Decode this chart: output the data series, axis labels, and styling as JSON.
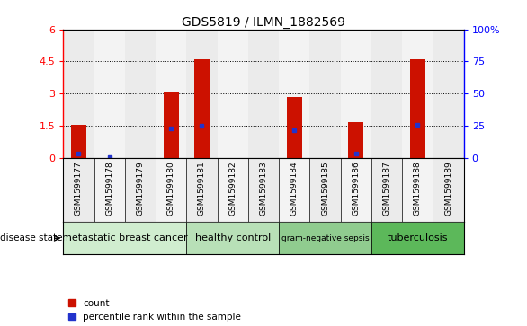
{
  "title": "GDS5819 / ILMN_1882569",
  "samples": [
    "GSM1599177",
    "GSM1599178",
    "GSM1599179",
    "GSM1599180",
    "GSM1599181",
    "GSM1599182",
    "GSM1599183",
    "GSM1599184",
    "GSM1599185",
    "GSM1599186",
    "GSM1599187",
    "GSM1599188",
    "GSM1599189"
  ],
  "count_values": [
    1.55,
    0.0,
    0.0,
    3.08,
    4.6,
    0.0,
    0.0,
    2.85,
    0.0,
    1.65,
    0.0,
    4.6,
    0.0
  ],
  "percentile_values_scaled": [
    0.22,
    0.05,
    0.0,
    1.38,
    1.5,
    0.0,
    0.0,
    1.28,
    0.0,
    0.22,
    0.0,
    1.55,
    0.0
  ],
  "disease_groups": [
    {
      "label": "metastatic breast cancer",
      "start": 0,
      "end": 4,
      "color": "#d0edcf"
    },
    {
      "label": "healthy control",
      "start": 4,
      "end": 7,
      "color": "#b8e0b7"
    },
    {
      "label": "gram-negative sepsis",
      "start": 7,
      "end": 10,
      "color": "#90cc8f"
    },
    {
      "label": "tuberculosis",
      "start": 10,
      "end": 13,
      "color": "#5cb85a"
    }
  ],
  "ylim_left": [
    0,
    6
  ],
  "ylim_right": [
    0,
    100
  ],
  "yticks_left": [
    0,
    1.5,
    3.0,
    4.5,
    6.0
  ],
  "ytick_labels_left": [
    "0",
    "1.5",
    "3",
    "4.5",
    "6"
  ],
  "yticks_right": [
    0,
    25,
    50,
    75,
    100
  ],
  "ytick_labels_right": [
    "0",
    "25",
    "50",
    "75",
    "100%"
  ],
  "bar_color": "#cc1100",
  "percentile_color": "#2233cc",
  "bar_width": 0.5,
  "col_colors": [
    "#d8d8d8",
    "#e8e8e8"
  ],
  "disease_state_label": "disease state",
  "legend_count_label": "count",
  "legend_percentile_label": "percentile rank within the sample"
}
